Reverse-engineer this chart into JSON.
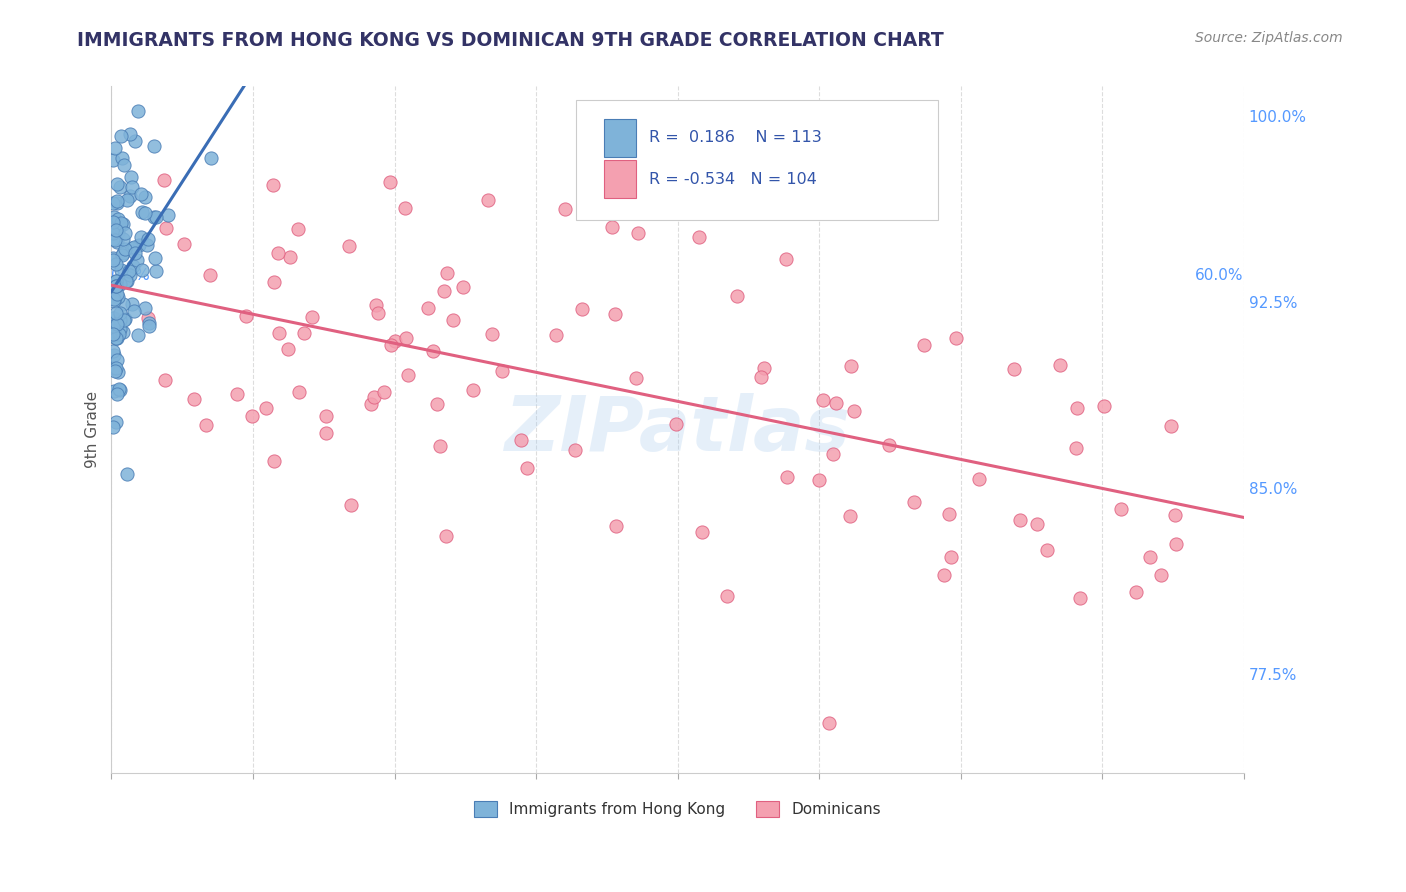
{
  "title": "IMMIGRANTS FROM HONG KONG VS DOMINICAN 9TH GRADE CORRELATION CHART",
  "source_text": "Source: ZipAtlas.com",
  "ylabel": "9th Grade",
  "right_ytick_labels": [
    "77.5%",
    "85.0%",
    "92.5%",
    "100.0%"
  ],
  "right_ytick_values": [
    0.775,
    0.85,
    0.925,
    1.0
  ],
  "xlim": [
    0.0,
    0.6
  ],
  "ylim": [
    0.735,
    1.012
  ],
  "legend_label1": "Immigrants from Hong Kong",
  "legend_label2": "Dominicans",
  "r1": 0.186,
  "n1": 113,
  "r2": -0.534,
  "n2": 104,
  "watermark": "ZIPatlas",
  "blue_color": "#7FB3D9",
  "pink_color": "#F4A0B0",
  "blue_edge_color": "#4A7DB5",
  "pink_edge_color": "#E06080",
  "blue_line_color": "#3A6DB5",
  "pink_line_color": "#E06080",
  "grid_color": "#DDDDDD",
  "title_color": "#333366",
  "source_color": "#888888",
  "axis_label_color": "#5599FF",
  "right_tick_color": "#5599FF",
  "legend_text_color": "#3355AA"
}
